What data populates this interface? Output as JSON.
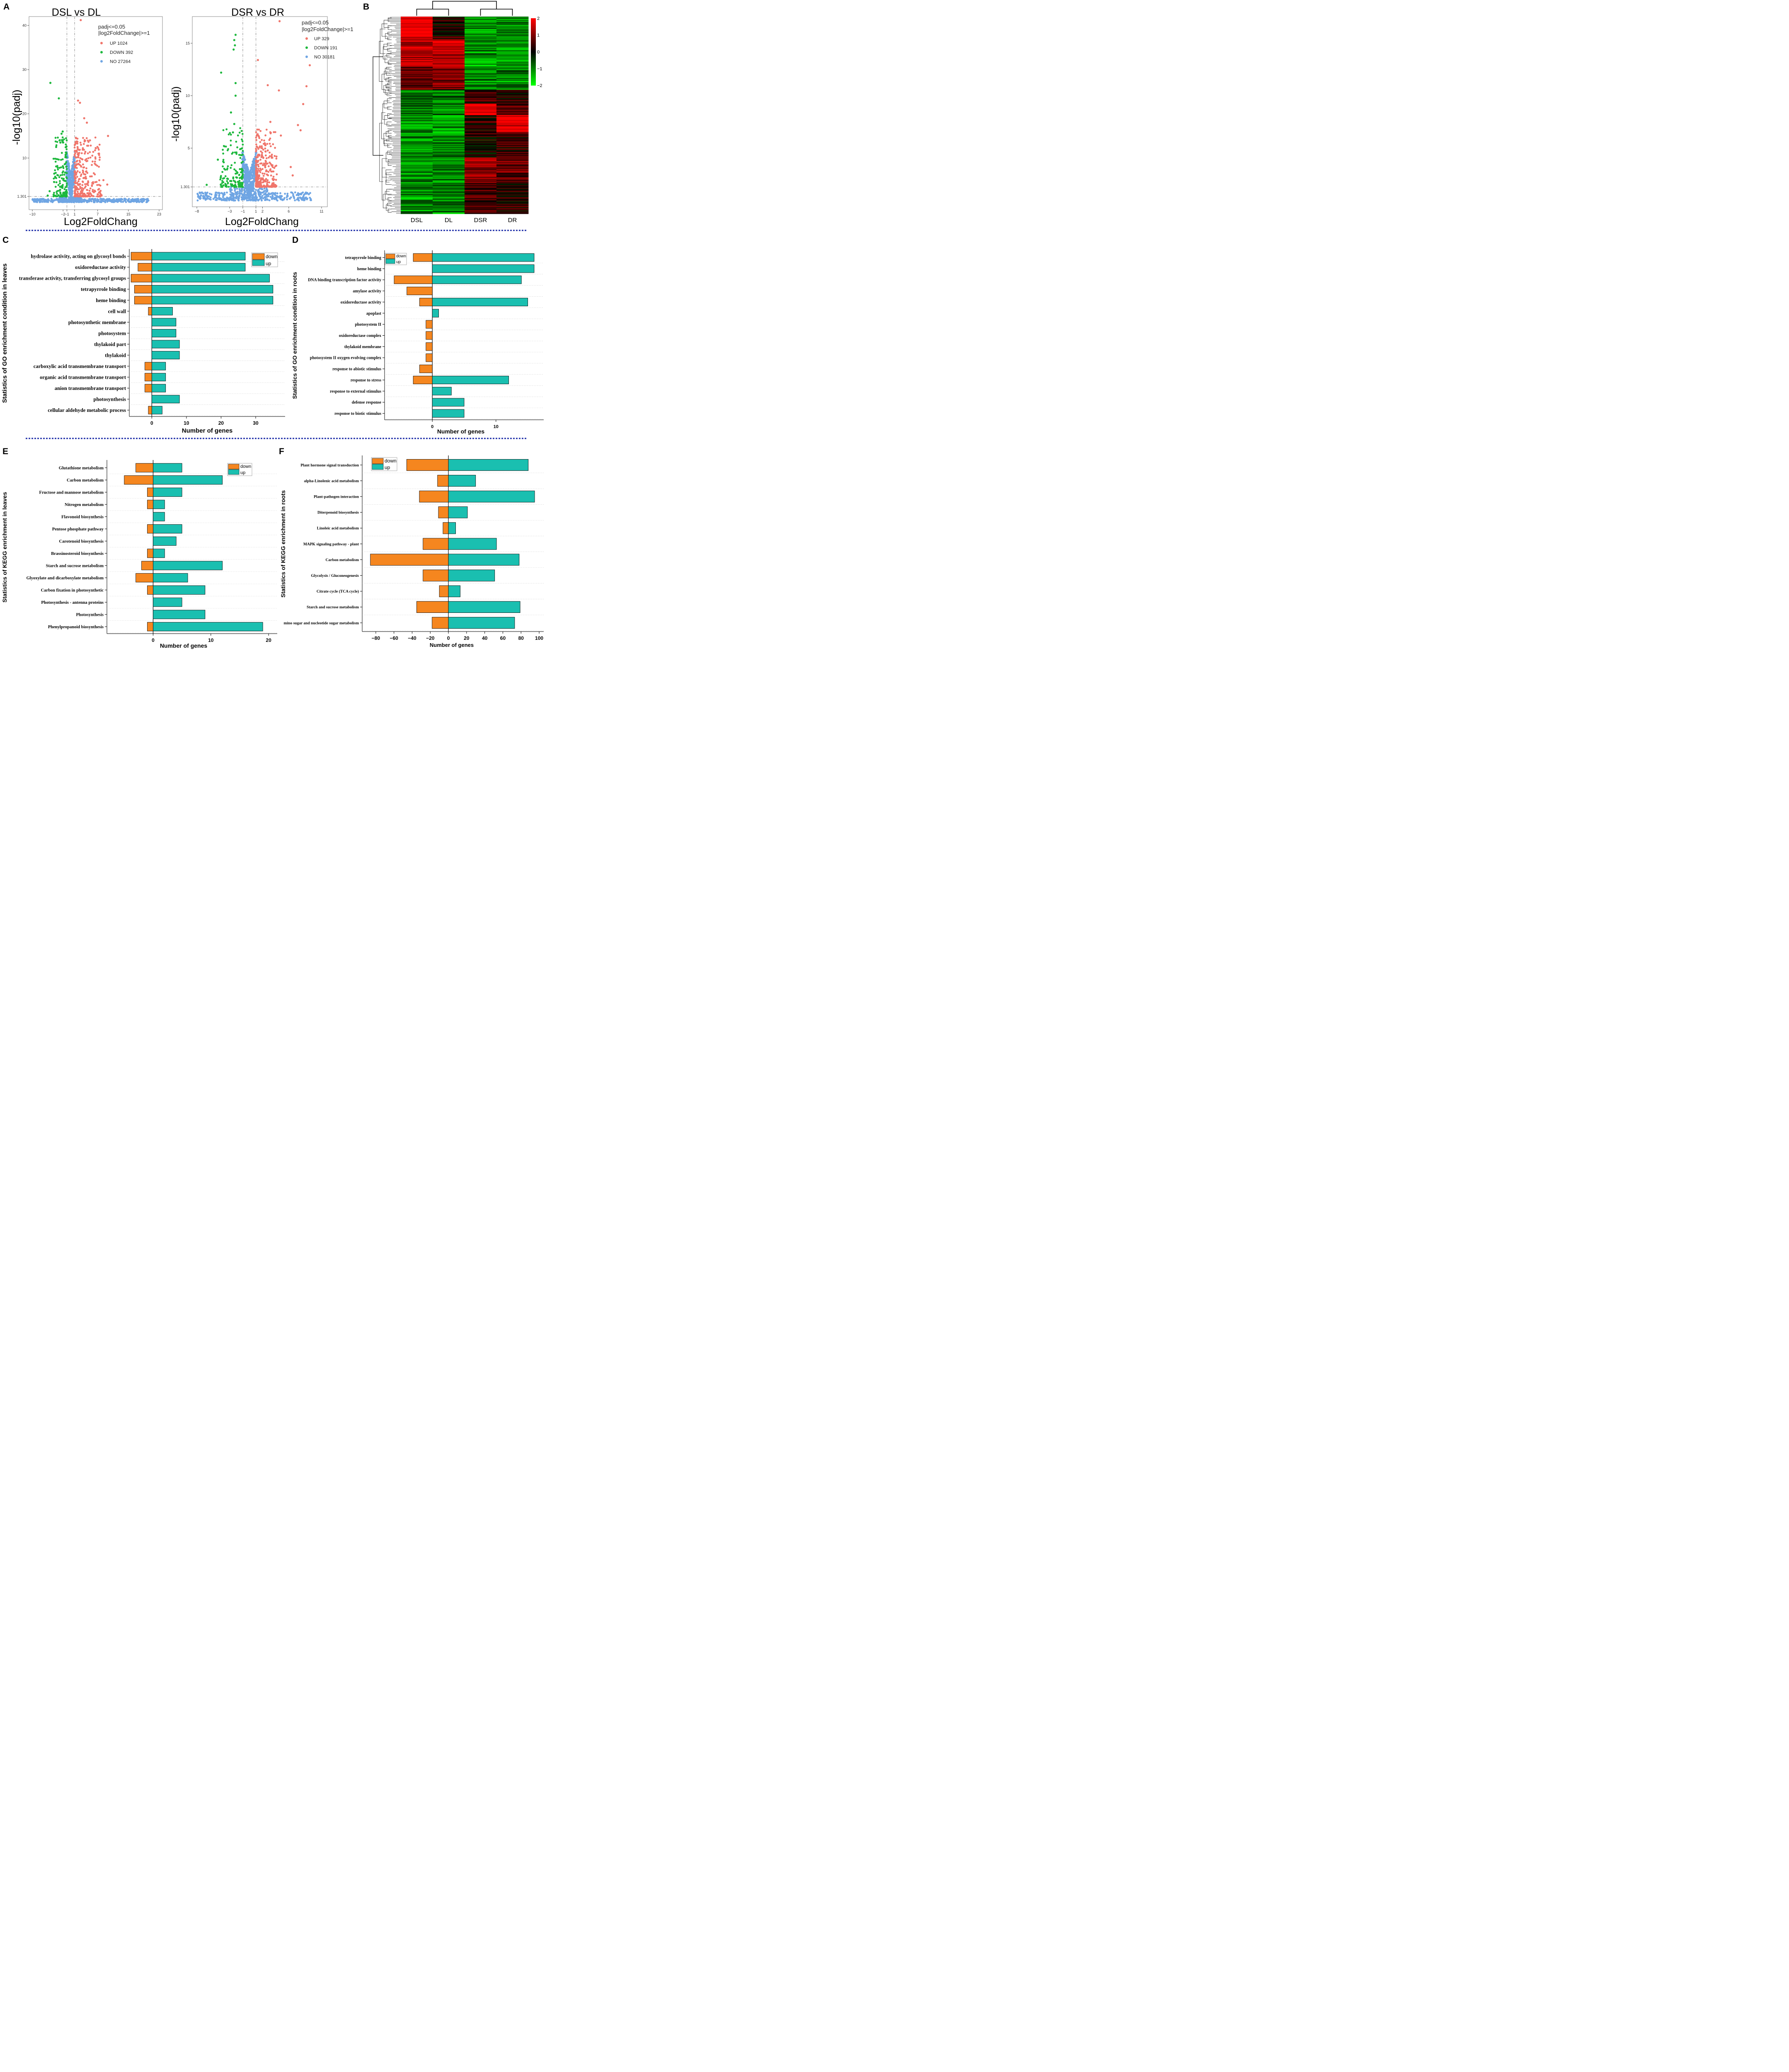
{
  "panels": {
    "A": "A",
    "B": "B",
    "C": "C",
    "D": "D",
    "E": "E",
    "F": "F"
  },
  "colors": {
    "up": "#F0756B",
    "down": "#1DB83D",
    "no": "#6FA5E3",
    "bar_up": "#1ABFB0",
    "bar_down": "#F5861F",
    "heat_high": "#FF0000",
    "heat_mid": "#000000",
    "heat_low": "#00FF00",
    "separator": "#1D2DA8"
  },
  "chart_data": [
    {
      "id": "volcano-leaves",
      "type": "scatter",
      "title": "DSL vs DL",
      "xlabel": "Log2FoldChang",
      "ylabel": "-log10(padj)",
      "xlim": [
        -10,
        23
      ],
      "ylim": [
        0,
        42
      ],
      "x_ticks": [
        -10,
        -2,
        -1,
        1,
        7,
        15,
        23
      ],
      "x_tick_labels": [
        "−10",
        "−2",
        "−1",
        "1",
        "7",
        "15",
        "23"
      ],
      "y_ticks": [
        1.301,
        10,
        20,
        30,
        40
      ],
      "y_tick_labels": [
        "1.301",
        "10",
        "20",
        "30",
        "40"
      ],
      "threshold_x": [
        -1,
        1
      ],
      "threshold_y": 1.301,
      "legend_title": [
        "padj<=0.05",
        "|log2FoldChange|>=1"
      ],
      "legend": [
        {
          "name": "UP 1024",
          "key": "up"
        },
        {
          "name": "DOWN 392",
          "key": "down"
        },
        {
          "name": "NO 27264",
          "key": "no"
        }
      ],
      "counts": {
        "up": 1024,
        "down": 392,
        "no": 27264
      },
      "notable_points": {
        "up": [
          [
            2.6,
            41.2
          ],
          [
            1.9,
            23
          ],
          [
            2.4,
            22.5
          ],
          [
            3.5,
            19
          ],
          [
            4.2,
            18
          ],
          [
            9.7,
            15
          ],
          [
            5,
            14
          ],
          [
            6.5,
            8.5
          ],
          [
            8.5,
            5
          ],
          [
            9.5,
            4
          ]
        ],
        "down": [
          [
            -5.3,
            27
          ],
          [
            -3.1,
            23.5
          ],
          [
            -2.1,
            16
          ],
          [
            -2.4,
            15.5
          ],
          [
            -2.7,
            13.5
          ],
          [
            -3.8,
            12.5
          ],
          [
            -5.5,
            2.5
          ],
          [
            -6,
            1.5
          ]
        ]
      }
    },
    {
      "id": "volcano-roots",
      "type": "scatter",
      "title": "DSR vs DR",
      "xlabel": "Log2FoldChang",
      "ylabel": "-log10(padj)",
      "xlim": [
        -8,
        11
      ],
      "ylim": [
        0,
        17.5
      ],
      "x_ticks": [
        -8,
        -3,
        -1,
        1,
        2,
        6,
        11
      ],
      "x_tick_labels": [
        "−8",
        "−3",
        "−1",
        "1",
        "2",
        "6",
        "11"
      ],
      "y_ticks": [
        1.301,
        5,
        10,
        15
      ],
      "y_tick_labels": [
        "1.301",
        "5",
        "10",
        "15"
      ],
      "threshold_x": [
        -1,
        1
      ],
      "threshold_y": 1.301,
      "legend_title": [
        "padj<=0.05",
        "|log2FoldChange|>=1"
      ],
      "legend": [
        {
          "name": "UP 329",
          "key": "up"
        },
        {
          "name": "DOWN 191",
          "key": "down"
        },
        {
          "name": "NO 30181",
          "key": "no"
        }
      ],
      "counts": {
        "up": 329,
        "down": 191,
        "no": 30181
      },
      "notable_points": {
        "up": [
          [
            4.6,
            17.1
          ],
          [
            9.2,
            12.9
          ],
          [
            1.3,
            13.4
          ],
          [
            8.7,
            10.9
          ],
          [
            2.8,
            11
          ],
          [
            4.5,
            10.5
          ],
          [
            8.2,
            9.2
          ],
          [
            7.4,
            7.2
          ],
          [
            7.8,
            6.7
          ],
          [
            4.8,
            6.2
          ],
          [
            3.2,
            7.5
          ],
          [
            6.3,
            3.2
          ],
          [
            6.6,
            2.4
          ]
        ],
        "down": [
          [
            -2.1,
            15.8
          ],
          [
            -2.3,
            15.3
          ],
          [
            -2.2,
            14.8
          ],
          [
            -2.4,
            14.4
          ],
          [
            -4.3,
            12.2
          ],
          [
            -2.1,
            11.2
          ],
          [
            -2.1,
            10
          ],
          [
            -2.8,
            8.4
          ],
          [
            -2.3,
            7.3
          ],
          [
            -2.5,
            6.5
          ],
          [
            -4.8,
            3.9
          ],
          [
            -6.5,
            1.5
          ]
        ]
      }
    },
    {
      "id": "heatmap",
      "type": "heatmap",
      "columns": [
        "DSL",
        "DL",
        "DSR",
        "DR"
      ],
      "colorbar_ticks": [
        2,
        1,
        0,
        -1,
        -2
      ],
      "colorbar_tick_labels": [
        "2",
        "1",
        "0",
        "−1",
        "−2"
      ],
      "row_blocks": [
        {
          "weight": 16,
          "values": [
            1.9,
            0.2,
            -1.2,
            -1.1
          ]
        },
        {
          "weight": 20,
          "values": [
            1.4,
            1.3,
            -1.2,
            -1.2
          ]
        },
        {
          "weight": 16,
          "values": [
            0.8,
            0.9,
            -1.1,
            -1.1
          ]
        },
        {
          "weight": 10,
          "values": [
            -1.0,
            -1.0,
            0.4,
            0.3
          ]
        },
        {
          "weight": 8,
          "values": [
            -1.0,
            -1.0,
            2.0,
            0.6
          ]
        },
        {
          "weight": 12,
          "values": [
            -1.1,
            -1.1,
            0.3,
            1.9
          ]
        },
        {
          "weight": 18,
          "values": [
            -1.1,
            -1.1,
            0.2,
            0.3
          ]
        },
        {
          "weight": 18,
          "values": [
            -1.1,
            -1.1,
            1.1,
            0.7
          ]
        },
        {
          "weight": 22,
          "values": [
            -1.1,
            -1.1,
            0.6,
            0.3
          ]
        }
      ]
    },
    {
      "id": "go-leaves",
      "type": "bar",
      "orientation": "horizontal",
      "ylabel": "Statistics of GO enrichment condition in leaves",
      "xlabel": "Number of genes",
      "xlim": [
        -6.5,
        38.5
      ],
      "x_ticks": [
        0,
        10,
        20,
        30
      ],
      "x_tick_labels": [
        "0",
        "10",
        "20",
        "30"
      ],
      "legend": [
        {
          "name": "down",
          "key": "bar_down"
        },
        {
          "name": "up",
          "key": "bar_up"
        }
      ],
      "categories": [
        "hydrolase activity, acting on glycosyl bonds",
        "oxidoreductase activity",
        "transferase activity, transferring glycosyl groups",
        "tetrapyrrole binding",
        "heme binding",
        "cell wall",
        "photosynthetic membrane",
        "photosystem",
        "thylakoid part",
        "thylakoid",
        "carboxylic acid transmembrane transport",
        "organic acid transmembrane transport",
        "anion transmembrane transport",
        "photosynthesis",
        "cellular aldehyde metabolic process"
      ],
      "series": [
        {
          "name": "down",
          "values": [
            -6,
            -4,
            -6,
            -5,
            -5,
            -1,
            0,
            0,
            0,
            0,
            -2,
            -2,
            -2,
            0,
            -1
          ]
        },
        {
          "name": "up",
          "values": [
            27,
            27,
            34,
            35,
            35,
            6,
            7,
            7,
            8,
            8,
            4,
            4,
            4,
            8,
            3
          ]
        }
      ]
    },
    {
      "id": "go-roots",
      "type": "bar",
      "orientation": "horizontal",
      "ylabel": "Statistics of GO enrichment condition in roots",
      "xlabel": "Number of genes",
      "xlim": [
        -7.5,
        17.5
      ],
      "x_ticks": [
        0,
        10
      ],
      "x_tick_labels": [
        "0",
        "10"
      ],
      "legend": [
        {
          "name": "down",
          "key": "bar_down"
        },
        {
          "name": "up",
          "key": "bar_up"
        }
      ],
      "categories": [
        "tetrapyrrole binding",
        "heme binding",
        "DNA binding transcription factor activity",
        "amylase activity",
        "oxidoreductase activity",
        "apoplast",
        "photosystem II",
        "oxidoreductase complex",
        "thylakoid membrane",
        "photosystem II oxygen evolving complex",
        "response to abiotic stimulus",
        "response to stress",
        "response to external stimulus",
        "defense response",
        "response to biotic stimulus"
      ],
      "series": [
        {
          "name": "down",
          "values": [
            -3,
            0,
            -6,
            -4,
            -2,
            0,
            -1,
            -1,
            -1,
            -1,
            -2,
            -3,
            0,
            0,
            0
          ]
        },
        {
          "name": "up",
          "values": [
            16,
            16,
            14,
            0,
            15,
            1,
            0,
            0,
            0,
            0,
            0,
            12,
            3,
            5,
            5
          ]
        }
      ]
    },
    {
      "id": "kegg-leaves",
      "type": "bar",
      "orientation": "horizontal",
      "ylabel": "Statistics of KEGG enrichment in leaves",
      "xlabel": "Number of genes",
      "xlim": [
        -8,
        21.5
      ],
      "x_ticks": [
        0,
        10,
        20
      ],
      "x_tick_labels": [
        "0",
        "10",
        "20"
      ],
      "legend": [
        {
          "name": "down",
          "key": "bar_down"
        },
        {
          "name": "up",
          "key": "bar_up"
        }
      ],
      "categories": [
        "Glutathione metabolism",
        "Carbon metabolism",
        "Fructose and mannose metabolism",
        "Nitrogen metabolism",
        "Flavonoid biosynthesis",
        "Pentose phosphate pathway",
        "Carotenoid biosynthesis",
        "Brassinosteroid biosynthesis",
        "Starch and sucrose metabolism",
        "Glyoxylate and dicarboxylate metabolism",
        "Carbon fixation in photosynthetic",
        "Photosynthesis - antenna proteins",
        "Photosynthesis",
        "Phenylpropanoid biosynthesis"
      ],
      "series": [
        {
          "name": "down",
          "values": [
            -3,
            -5,
            -1,
            -1,
            0,
            -1,
            0,
            -1,
            -2,
            -3,
            -1,
            0,
            0,
            -1
          ]
        },
        {
          "name": "up",
          "values": [
            5,
            12,
            5,
            2,
            2,
            5,
            4,
            2,
            12,
            6,
            9,
            5,
            9,
            19
          ]
        }
      ]
    },
    {
      "id": "kegg-roots",
      "type": "bar",
      "orientation": "horizontal",
      "ylabel": "Statistics of KEGG enrichment in roots",
      "xlabel": "Number of genes",
      "xlim": [
        -95,
        105
      ],
      "x_ticks": [
        -80,
        -60,
        -40,
        -20,
        0,
        20,
        40,
        60,
        80,
        100
      ],
      "x_tick_labels": [
        "−80",
        "−60",
        "−40",
        "−20",
        "0",
        "20",
        "40",
        "60",
        "80",
        "100"
      ],
      "legend": [
        {
          "name": "down",
          "key": "bar_down"
        },
        {
          "name": "up",
          "key": "bar_up"
        }
      ],
      "categories": [
        "Plant hormone signal transduction",
        "alpha-Linolenic acid metabolism",
        "Plant-pathogen interaction",
        "Diterpenoid biosynthesis",
        "Linoleic acid metabolism",
        "MAPK signaling pathway - plant",
        "Carbon metabolism",
        "Glycolysis / Gluconeogenesis",
        "Citrate cycle (TCA cycle)",
        "Starch and sucrose metabolism",
        "mino sugar and nucleotide sugar metabolism"
      ],
      "series": [
        {
          "name": "down",
          "values": [
            -46,
            -12,
            -32,
            -11,
            -6,
            -28,
            -86,
            -28,
            -10,
            -35,
            -18
          ]
        },
        {
          "name": "up",
          "values": [
            88,
            30,
            95,
            21,
            8,
            53,
            78,
            51,
            13,
            79,
            73
          ]
        }
      ]
    }
  ]
}
